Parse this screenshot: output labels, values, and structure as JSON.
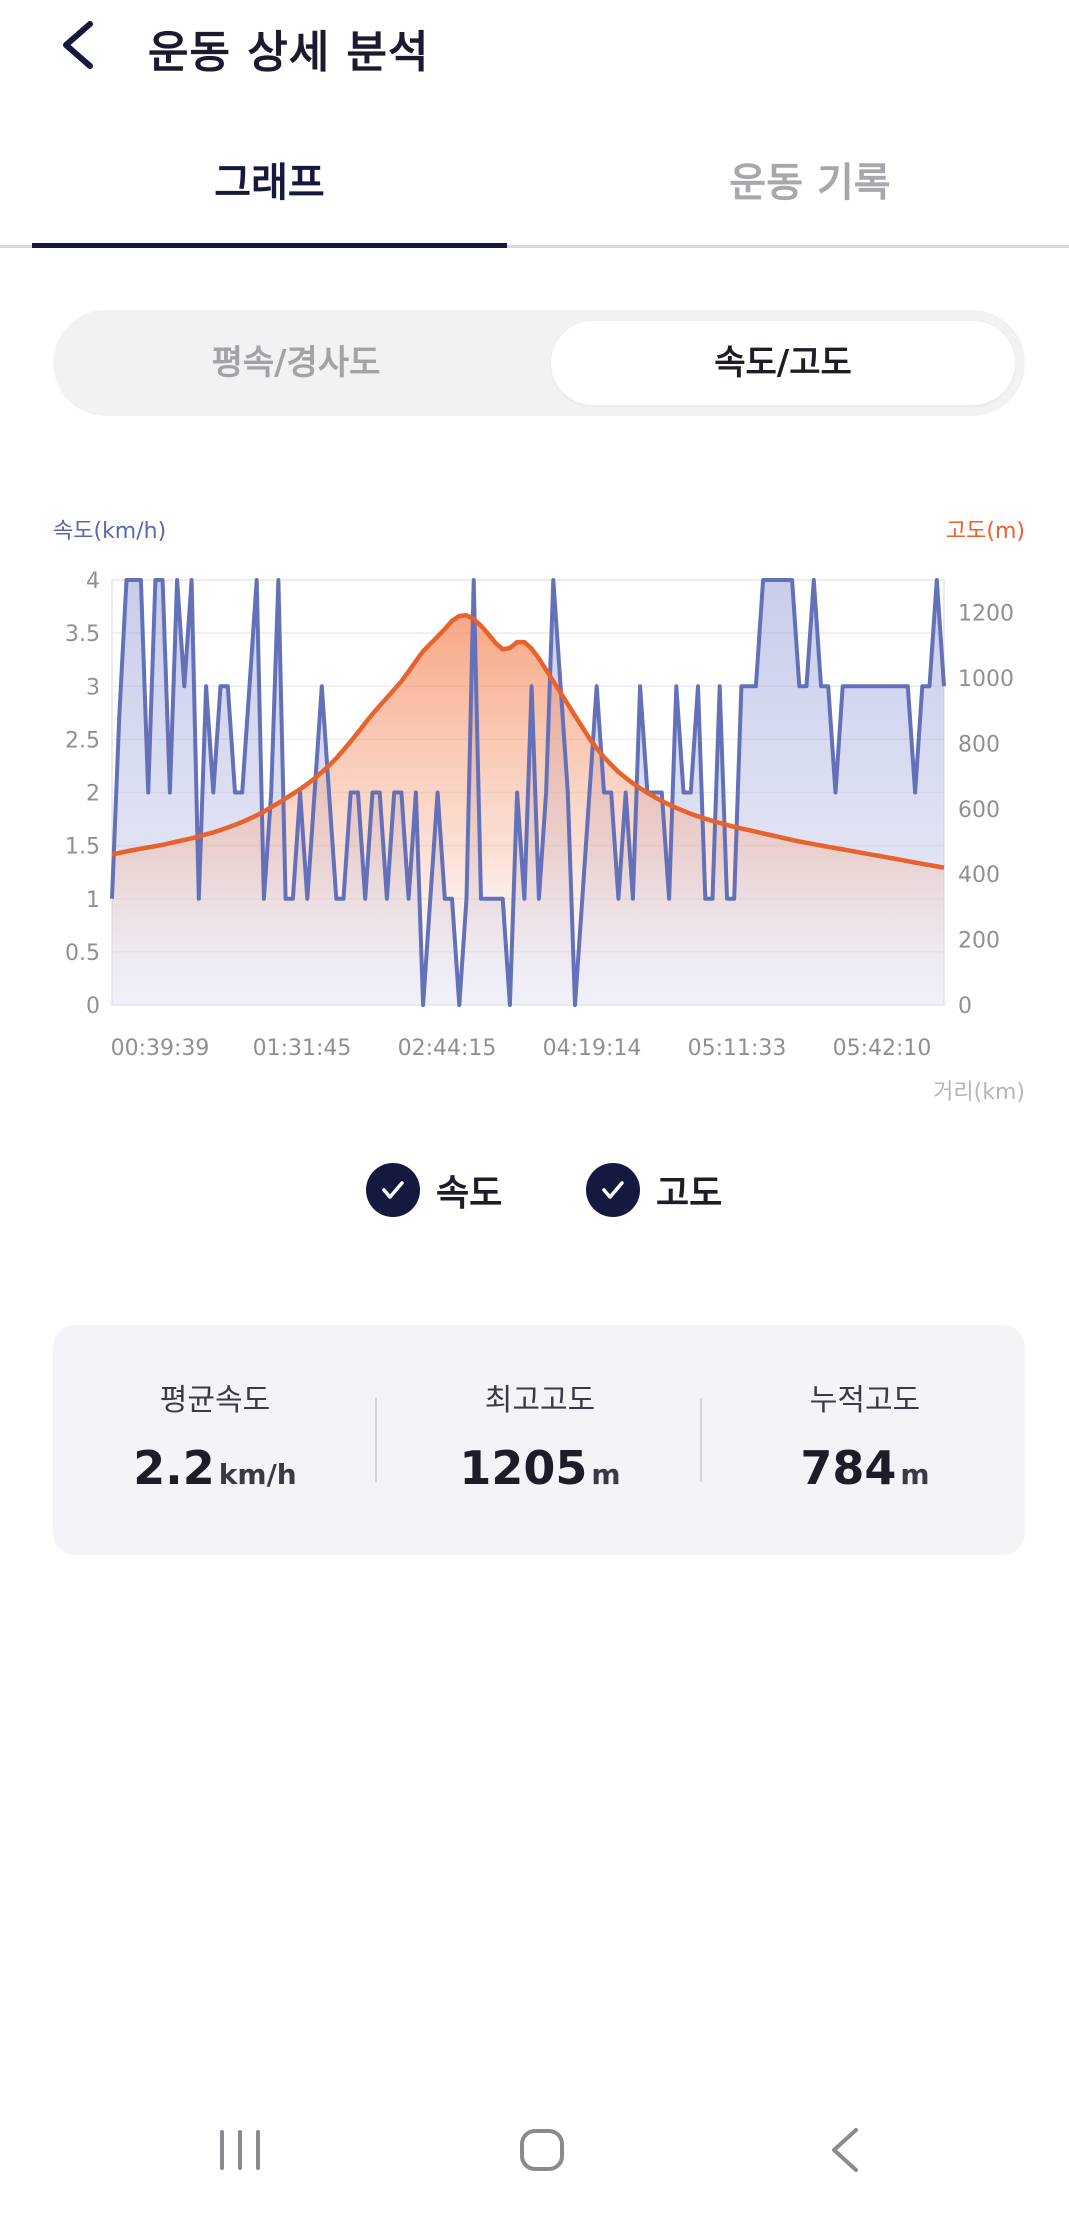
{
  "header": {
    "title": "운동 상세 분석"
  },
  "tabs": [
    {
      "label": "그래프",
      "active": true
    },
    {
      "label": "운동 기록",
      "active": false
    }
  ],
  "segmented": {
    "left_label": "평속/경사도",
    "right_label": "속도/고도",
    "selected": "속도/고도"
  },
  "chart_data": {
    "type": "line",
    "y_left_label": "속도(km/h)",
    "y_right_label": "고도(m)",
    "xlabel": "거리(km)",
    "x_tick_labels": [
      "00:39:39",
      "01:31:45",
      "02:44:15",
      "04:19:14",
      "05:11:33",
      "05:42:10"
    ],
    "y_left_ticks": [
      "0",
      "0.5",
      "1",
      "1.5",
      "2",
      "2.5",
      "3",
      "3.5",
      "4"
    ],
    "y_right_ticks": [
      "0",
      "200",
      "400",
      "600",
      "800",
      "1000",
      "1200"
    ],
    "y_left_range": [
      0,
      4
    ],
    "y_right_range": [
      0,
      1300
    ],
    "series": [
      {
        "name": "속도",
        "axis": "left",
        "color": "#6470b8",
        "values": [
          1,
          2.7,
          4,
          4,
          4,
          2,
          4,
          4,
          2,
          4,
          3,
          4,
          1,
          3,
          2,
          3,
          3,
          2,
          2,
          3,
          4,
          1,
          2,
          4,
          1,
          1,
          2,
          1,
          2,
          3,
          2,
          1,
          1,
          2,
          2,
          1,
          2,
          2,
          1,
          2,
          2,
          1,
          2,
          0,
          1,
          2,
          1,
          1,
          0,
          1,
          4,
          1,
          1,
          1,
          1,
          0,
          2,
          1,
          3,
          1,
          2,
          4,
          3,
          2,
          0,
          1,
          2,
          3,
          2,
          2,
          1,
          2,
          1,
          3,
          2,
          2,
          2,
          1,
          3,
          2,
          2,
          3,
          1,
          1,
          3,
          1,
          1,
          3,
          3,
          3,
          4,
          4,
          4,
          4,
          4,
          3,
          3,
          4,
          3,
          3,
          2,
          3,
          3,
          3,
          3,
          3,
          3,
          3,
          3,
          3,
          3,
          2,
          3,
          3,
          4,
          3
        ]
      },
      {
        "name": "고도",
        "axis": "right",
        "color": "#e8622e",
        "values": [
          460,
          465,
          470,
          474,
          478,
          482,
          486,
          490,
          495,
          500,
          505,
          510,
          515,
          522,
          528,
          535,
          543,
          551,
          560,
          570,
          580,
          592,
          605,
          618,
          632,
          646,
          660,
          676,
          693,
          712,
          732,
          755,
          780,
          806,
          834,
          862,
          890,
          915,
          940,
          965,
          990,
          1020,
          1052,
          1082,
          1105,
          1127,
          1150,
          1175,
          1190,
          1192,
          1180,
          1160,
          1135,
          1108,
          1088,
          1092,
          1110,
          1110,
          1090,
          1060,
          1025,
          990,
          955,
          920,
          885,
          850,
          815,
          785,
          758,
          735,
          713,
          695,
          678,
          663,
          649,
          636,
          624,
          613,
          603,
          594,
          585,
          577,
          570,
          563,
          557,
          551,
          545,
          540,
          535,
          530,
          525,
          520,
          515,
          510,
          505,
          500,
          496,
          492,
          488,
          484,
          480,
          476,
          472,
          468,
          464,
          460,
          456,
          452,
          448,
          444,
          440,
          436,
          432,
          428,
          424,
          420
        ]
      }
    ],
    "legend": [
      {
        "label": "속도",
        "checked": true
      },
      {
        "label": "고도",
        "checked": true
      }
    ],
    "legend_placement": "bottom-center",
    "grid": true
  },
  "stats": [
    {
      "label": "평균속도",
      "value": "2.2",
      "unit": "km/h"
    },
    {
      "label": "최고고도",
      "value": "1205",
      "unit": "m"
    },
    {
      "label": "누적고도",
      "value": "784",
      "unit": "m"
    }
  ],
  "nav": {
    "recent_icon": "recent-apps-icon",
    "home_icon": "home-icon",
    "back_icon": "back-icon"
  }
}
